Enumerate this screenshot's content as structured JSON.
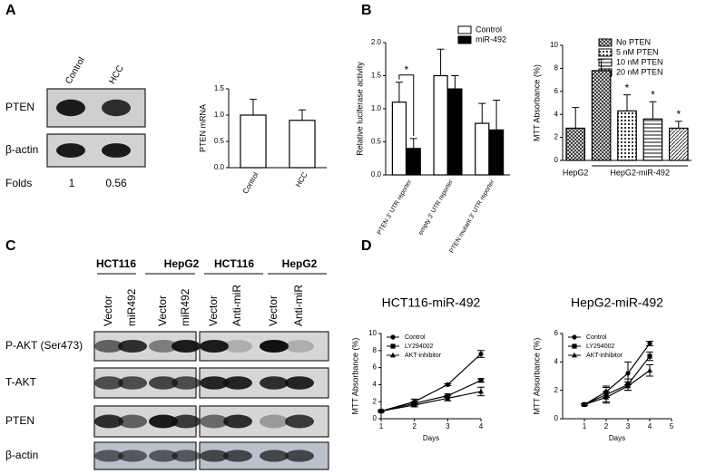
{
  "panels": {
    "labels": [
      "A",
      "B",
      "C",
      "D"
    ],
    "A": {
      "lanes": [
        "Control",
        "HCC"
      ],
      "rows": [
        "PTEN",
        "β-actin"
      ],
      "folds_label": "Folds",
      "folds": [
        1,
        0.56
      ]
    },
    "C": {
      "cell_lines": [
        "HCT116",
        "HepG2",
        "HCT116",
        "HepG2"
      ],
      "lanes": [
        "Vector",
        "miR492",
        "Vector",
        "miR492",
        "Vector",
        "Anti-miR",
        "Vector",
        "Anti-miR"
      ],
      "rows": [
        "P-AKT (Ser473)",
        "T-AKT",
        "PTEN",
        "β-actin"
      ]
    }
  },
  "chart_data": [
    {
      "type": "bar",
      "ylabel": "PTEN mRNA",
      "categories": [
        "Control",
        "HCC"
      ],
      "values": [
        1.0,
        0.9
      ],
      "errors": [
        0.3,
        0.2
      ],
      "color": "#ffffff",
      "ylim": [
        0,
        1.5
      ],
      "yticks": [
        {
          "value": 0,
          "label": "0.0"
        },
        0.5,
        {
          "value": 1,
          "label": "1.0"
        },
        1.5
      ]
    },
    {
      "type": "bar",
      "ylabel": "Relative luciferase activity",
      "categories": [
        "PTEN 3' UTR reporter",
        "empty 3' UTR reporter",
        "PTEN mutant 3' UTR reporter"
      ],
      "series": [
        {
          "name": "Control",
          "color": "#ffffff",
          "values": [
            1.1,
            1.5,
            0.78
          ],
          "errors": [
            0.3,
            0.4,
            0.3
          ]
        },
        {
          "name": "miR-492",
          "color": "#000000",
          "values": [
            0.4,
            1.3,
            0.68
          ],
          "errors": [
            0.15,
            0.2,
            0.45
          ]
        }
      ],
      "ylim": [
        0,
        2
      ],
      "yticks": [
        {
          "value": 0,
          "label": "0.0"
        },
        0.5,
        {
          "value": 1,
          "label": "1.0"
        },
        1.5,
        {
          "value": 2,
          "label": "2.0"
        }
      ],
      "annotations": [
        "*"
      ],
      "legend": "upper right"
    },
    {
      "type": "bar",
      "ylabel": "MTT Absorbance (%)",
      "categories": [
        "HepG2",
        "HepG2-miR-492"
      ],
      "series": [
        {
          "name": "No PTEN",
          "color": "#333333",
          "values": [
            2.8,
            7.8
          ],
          "errors": [
            1.8,
            1.0
          ]
        },
        {
          "name": "5 nM PTEN",
          "color": "#333333",
          "values": [
            null,
            4.3
          ],
          "errors": [
            null,
            1.4
          ]
        },
        {
          "name": "10 nM PTEN",
          "color": "#333333",
          "values": [
            null,
            3.6
          ],
          "errors": [
            null,
            1.5
          ]
        },
        {
          "name": "20 nM PTEN",
          "color": "#333333",
          "values": [
            null,
            2.8
          ],
          "errors": [
            null,
            0.6
          ]
        }
      ],
      "ylim": [
        0,
        10
      ],
      "yticks": [
        0,
        2,
        4,
        6,
        8,
        10
      ],
      "annotations": [
        "*",
        "*",
        "*"
      ],
      "legend": "upper right"
    },
    {
      "type": "line",
      "title": "HCT116-miR-492",
      "xlabel": "Days",
      "ylabel": "MTT Absorbance (%)",
      "x": [
        1,
        2,
        3,
        4
      ],
      "xlim": [
        1,
        4
      ],
      "xticks": [
        1,
        2,
        3,
        4
      ],
      "ylim": [
        0,
        10
      ],
      "yticks": [
        0,
        2,
        4,
        6,
        8,
        10
      ],
      "series": [
        {
          "name": "Control",
          "color": "#000000",
          "marker": "circle",
          "values": [
            0.9,
            2.0,
            4.0,
            7.6
          ],
          "errors": [
            0.1,
            0.3,
            0.1,
            0.4
          ]
        },
        {
          "name": "LY294002",
          "color": "#000000",
          "marker": "square",
          "values": [
            0.9,
            1.8,
            2.7,
            4.5
          ],
          "errors": [
            0.1,
            0.2,
            0.2,
            0.2
          ]
        },
        {
          "name": "AKT-inhibitor",
          "color": "#000000",
          "marker": "triangle",
          "values": [
            0.9,
            1.6,
            2.4,
            3.2
          ],
          "errors": [
            0.1,
            0.2,
            0.3,
            0.5
          ]
        }
      ],
      "legend": "upper left"
    },
    {
      "type": "line",
      "title": "HepG2-miR-492",
      "xlabel": "Days",
      "ylabel": "MTT Absorbance (%)",
      "x": [
        1,
        2,
        3,
        4
      ],
      "xlim": [
        0,
        5
      ],
      "xticks": [
        1,
        2,
        3,
        4,
        5
      ],
      "ylim": [
        0,
        6
      ],
      "yticks": [
        0,
        2,
        4,
        6
      ],
      "series": [
        {
          "name": "Control",
          "color": "#000000",
          "marker": "circle",
          "values": [
            1.0,
            1.9,
            3.2,
            5.3
          ],
          "errors": [
            0.05,
            0.4,
            0.8,
            0.15
          ]
        },
        {
          "name": "LY294002",
          "color": "#000000",
          "marker": "square",
          "values": [
            1.0,
            1.7,
            2.4,
            4.4
          ],
          "errors": [
            0.05,
            0.5,
            0.4,
            0.3
          ]
        },
        {
          "name": "AKT-inhibitor",
          "color": "#000000",
          "marker": "triangle",
          "values": [
            1.0,
            1.5,
            2.3,
            3.4
          ],
          "errors": [
            0.05,
            0.4,
            0.3,
            0.4
          ]
        }
      ],
      "legend": "upper left"
    }
  ]
}
